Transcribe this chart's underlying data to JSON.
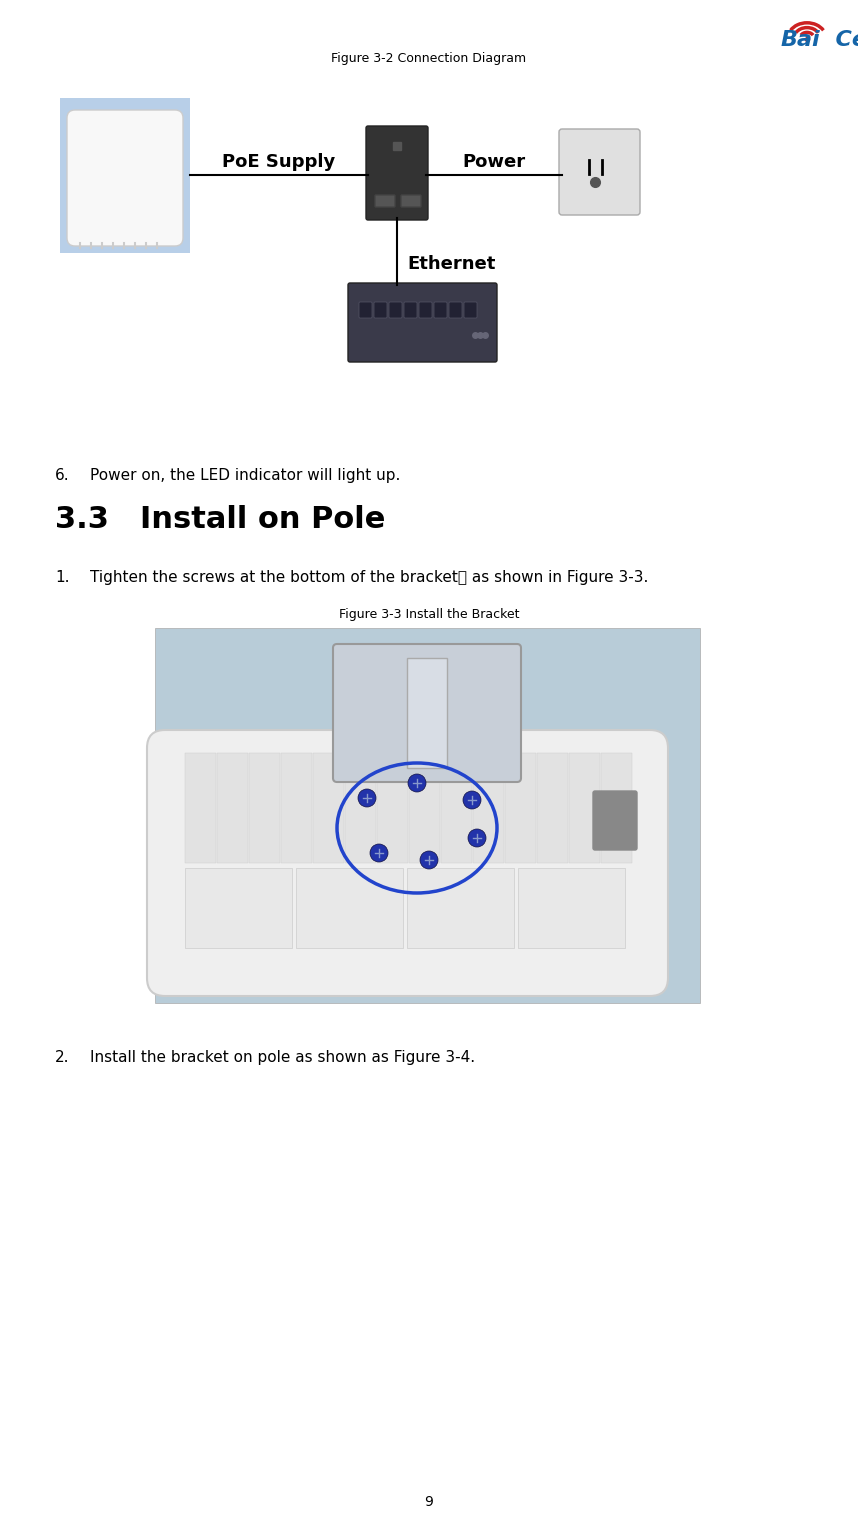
{
  "background_color": "#ffffff",
  "page_number": "9",
  "logo_color_blue": "#1565a8",
  "logo_color_red": "#cc2222",
  "fig3_2_caption": "Figure 3-2 Connection Diagram",
  "fig3_2_caption_fontsize": 9,
  "connection_labels": [
    "PoE Supply",
    "Power",
    "Ethernet"
  ],
  "connection_label_fontsize": 13,
  "step6_number": "6.",
  "step6_body": "    Power on, the LED indicator will light up.",
  "step6_fontsize": 11,
  "section_number": "3.3",
  "section_title": "   Install on Pole",
  "section_fontsize": 22,
  "step1_number": "1.",
  "step1_body": "    Tighten the screws at the bottom of the bracket， as shown in Figure 3-3.",
  "step1_fontsize": 11,
  "fig3_3_caption": "Figure 3-3 Install the Bracket",
  "fig3_3_caption_fontsize": 9,
  "step2_number": "2.",
  "step2_body": "    Install the bracket on pole as shown as Figure 3-4.",
  "step2_fontsize": 11,
  "ap_box_color": "#b8cfe8",
  "ap_inner_color": "#f5f5f5",
  "poe_color": "#333333",
  "outlet_color": "#e8e8e8",
  "switch_color": "#3a3a4a",
  "bracket_img_bg": "#b8ccd8",
  "bracket_img_device": "#e8e8e8",
  "bracket_img_device_top": "#d0d8e0",
  "bracket_circle_color": "#2244cc",
  "bracket_screw_color": "#2233aa"
}
